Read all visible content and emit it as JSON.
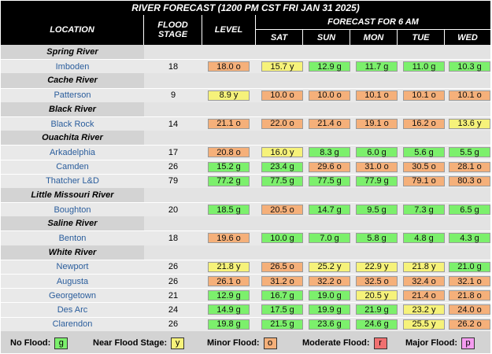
{
  "title": "RIVER FORECAST (1200 PM CST FRI JAN 31 2025)",
  "headers": {
    "location": "LOCATION",
    "flood_stage": "FLOOD STAGE",
    "level": "LEVEL",
    "forecast": "FORECAST FOR 6 AM",
    "days": [
      "SAT",
      "SUN",
      "MON",
      "TUE",
      "WED"
    ]
  },
  "colors": {
    "g": "#7cf06c",
    "y": "#f6f27a",
    "o": "#f5b07a",
    "r": "#f07070",
    "p": "#f59cf0"
  },
  "rows": [
    {
      "type": "river",
      "name": "Spring River"
    },
    {
      "type": "site",
      "name": "Imboden",
      "flood_stage": "18",
      "values": [
        [
          "18.0 o",
          "o"
        ],
        [
          "15.7 y",
          "y"
        ],
        [
          "12.9 g",
          "g"
        ],
        [
          "11.7 g",
          "g"
        ],
        [
          "11.0 g",
          "g"
        ],
        [
          "10.3 g",
          "g"
        ]
      ]
    },
    {
      "type": "river",
      "name": "Cache River"
    },
    {
      "type": "site",
      "name": "Patterson",
      "flood_stage": "9",
      "values": [
        [
          "8.9 y",
          "y"
        ],
        [
          "10.0 o",
          "o"
        ],
        [
          "10.0 o",
          "o"
        ],
        [
          "10.1 o",
          "o"
        ],
        [
          "10.1 o",
          "o"
        ],
        [
          "10.1 o",
          "o"
        ]
      ]
    },
    {
      "type": "river",
      "name": "Black River"
    },
    {
      "type": "site",
      "name": "Black Rock",
      "flood_stage": "14",
      "values": [
        [
          "21.1 o",
          "o"
        ],
        [
          "22.0 o",
          "o"
        ],
        [
          "21.4 o",
          "o"
        ],
        [
          "19.1 o",
          "o"
        ],
        [
          "16.2 o",
          "o"
        ],
        [
          "13.6 y",
          "y"
        ]
      ]
    },
    {
      "type": "river",
      "name": "Ouachita River"
    },
    {
      "type": "site",
      "name": "Arkadelphia",
      "flood_stage": "17",
      "values": [
        [
          "20.8 o",
          "o"
        ],
        [
          "16.0 y",
          "y"
        ],
        [
          "8.3 g",
          "g"
        ],
        [
          "6.0 g",
          "g"
        ],
        [
          "5.6 g",
          "g"
        ],
        [
          "5.5 g",
          "g"
        ]
      ]
    },
    {
      "type": "site",
      "name": "Camden",
      "flood_stage": "26",
      "values": [
        [
          "15.2 g",
          "g"
        ],
        [
          "23.4 g",
          "g"
        ],
        [
          "29.6 o",
          "o"
        ],
        [
          "31.0 o",
          "o"
        ],
        [
          "30.5 o",
          "o"
        ],
        [
          "28.1 o",
          "o"
        ]
      ]
    },
    {
      "type": "site",
      "name": "Thatcher L&D",
      "flood_stage": "79",
      "values": [
        [
          "77.2 g",
          "g"
        ],
        [
          "77.5 g",
          "g"
        ],
        [
          "77.5 g",
          "g"
        ],
        [
          "77.9 g",
          "g"
        ],
        [
          "79.1 o",
          "o"
        ],
        [
          "80.3 o",
          "o"
        ]
      ]
    },
    {
      "type": "river",
      "name": "Little Missouri River"
    },
    {
      "type": "site",
      "name": "Boughton",
      "flood_stage": "20",
      "values": [
        [
          "18.5 g",
          "g"
        ],
        [
          "20.5 o",
          "o"
        ],
        [
          "14.7 g",
          "g"
        ],
        [
          "9.5 g",
          "g"
        ],
        [
          "7.3 g",
          "g"
        ],
        [
          "6.5 g",
          "g"
        ]
      ]
    },
    {
      "type": "river",
      "name": "Saline River"
    },
    {
      "type": "site",
      "name": "Benton",
      "flood_stage": "18",
      "values": [
        [
          "19.6 o",
          "o"
        ],
        [
          "10.0 g",
          "g"
        ],
        [
          "7.0 g",
          "g"
        ],
        [
          "5.8 g",
          "g"
        ],
        [
          "4.8 g",
          "g"
        ],
        [
          "4.3 g",
          "g"
        ]
      ]
    },
    {
      "type": "river",
      "name": "White River"
    },
    {
      "type": "site",
      "name": "Newport",
      "flood_stage": "26",
      "values": [
        [
          "21.8 y",
          "y"
        ],
        [
          "26.5 o",
          "o"
        ],
        [
          "25.2 y",
          "y"
        ],
        [
          "22.9 y",
          "y"
        ],
        [
          "21.8 y",
          "y"
        ],
        [
          "21.0 g",
          "g"
        ]
      ]
    },
    {
      "type": "site",
      "name": "Augusta",
      "flood_stage": "26",
      "values": [
        [
          "26.1 o",
          "o"
        ],
        [
          "31.2 o",
          "o"
        ],
        [
          "32.2 o",
          "o"
        ],
        [
          "32.5 o",
          "o"
        ],
        [
          "32.4 o",
          "o"
        ],
        [
          "32.1 o",
          "o"
        ]
      ]
    },
    {
      "type": "site",
      "name": "Georgetown",
      "flood_stage": "21",
      "values": [
        [
          "12.9 g",
          "g"
        ],
        [
          "16.7 g",
          "g"
        ],
        [
          "19.0 g",
          "g"
        ],
        [
          "20.5 y",
          "y"
        ],
        [
          "21.4 o",
          "o"
        ],
        [
          "21.8 o",
          "o"
        ]
      ]
    },
    {
      "type": "site",
      "name": "Des Arc",
      "flood_stage": "24",
      "values": [
        [
          "14.9 g",
          "g"
        ],
        [
          "17.5 g",
          "g"
        ],
        [
          "19.9 g",
          "g"
        ],
        [
          "21.9 g",
          "g"
        ],
        [
          "23.2 y",
          "y"
        ],
        [
          "24.0 o",
          "o"
        ]
      ]
    },
    {
      "type": "site",
      "name": "Clarendon",
      "flood_stage": "26",
      "values": [
        [
          "19.8 g",
          "g"
        ],
        [
          "21.5 g",
          "g"
        ],
        [
          "23.6 g",
          "g"
        ],
        [
          "24.6 g",
          "g"
        ],
        [
          "25.5 y",
          "y"
        ],
        [
          "26.2 o",
          "o"
        ]
      ]
    }
  ],
  "legend": [
    {
      "label": "No Flood:",
      "code": "g"
    },
    {
      "label": "Near Flood Stage:",
      "code": "y"
    },
    {
      "label": "Minor Flood:",
      "code": "o"
    },
    {
      "label": "Moderate Flood:",
      "code": "r"
    },
    {
      "label": "Major Flood:",
      "code": "p"
    }
  ]
}
